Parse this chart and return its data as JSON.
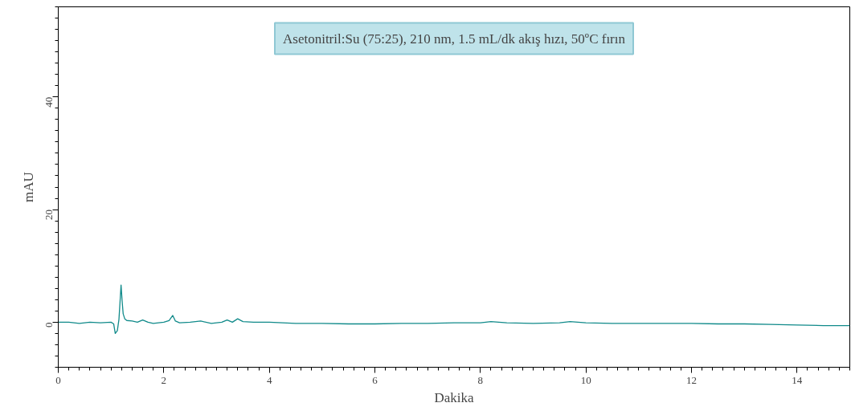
{
  "chart_data": {
    "type": "line",
    "xlabel": "Dakika",
    "ylabel": "mAU",
    "annotations": [
      "Asetonitril:Su (75:25), 210 nm, 1.5 mL/dk akış hızı, 50ºC fırın"
    ],
    "xlim": [
      0,
      15
    ],
    "ylim": [
      -8,
      56
    ],
    "xticks": [
      0,
      2,
      4,
      6,
      8,
      10,
      12,
      14
    ],
    "yticks": [
      0,
      20,
      40
    ],
    "grid": false,
    "marker": "none",
    "line_style": "solid",
    "series": [
      {
        "color": "#108a8a",
        "x": [
          0,
          0.2,
          0.4,
          0.6,
          0.8,
          1.0,
          1.05,
          1.08,
          1.12,
          1.15,
          1.17,
          1.19,
          1.21,
          1.23,
          1.26,
          1.3,
          1.4,
          1.5,
          1.6,
          1.7,
          1.8,
          1.9,
          2.0,
          2.1,
          2.17,
          2.22,
          2.3,
          2.5,
          2.7,
          2.9,
          3.1,
          3.2,
          3.3,
          3.4,
          3.5,
          3.7,
          4.0,
          4.5,
          5.0,
          5.5,
          6.0,
          6.5,
          7.0,
          7.5,
          8.0,
          8.2,
          8.5,
          9.0,
          9.5,
          9.7,
          10.0,
          10.5,
          11.0,
          11.5,
          12.0,
          12.5,
          13.0,
          13.5,
          14.0,
          14.5,
          15.0
        ],
        "values": [
          0,
          0,
          -0.2,
          0,
          -0.1,
          0,
          -0.3,
          -2.0,
          -1.5,
          0.5,
          3.5,
          6.6,
          3.8,
          1.5,
          0.6,
          0.3,
          0.2,
          0,
          0.4,
          0,
          -0.2,
          -0.1,
          0,
          0.3,
          1.2,
          0.2,
          -0.1,
          0,
          0.2,
          -0.2,
          0,
          0.4,
          0,
          0.6,
          0.1,
          0,
          0,
          -0.2,
          -0.2,
          -0.3,
          -0.3,
          -0.2,
          -0.2,
          -0.1,
          -0.1,
          0.1,
          -0.1,
          -0.2,
          -0.1,
          0.1,
          -0.1,
          -0.2,
          -0.2,
          -0.2,
          -0.2,
          -0.3,
          -0.3,
          -0.4,
          -0.5,
          -0.6,
          -0.6
        ]
      }
    ]
  }
}
